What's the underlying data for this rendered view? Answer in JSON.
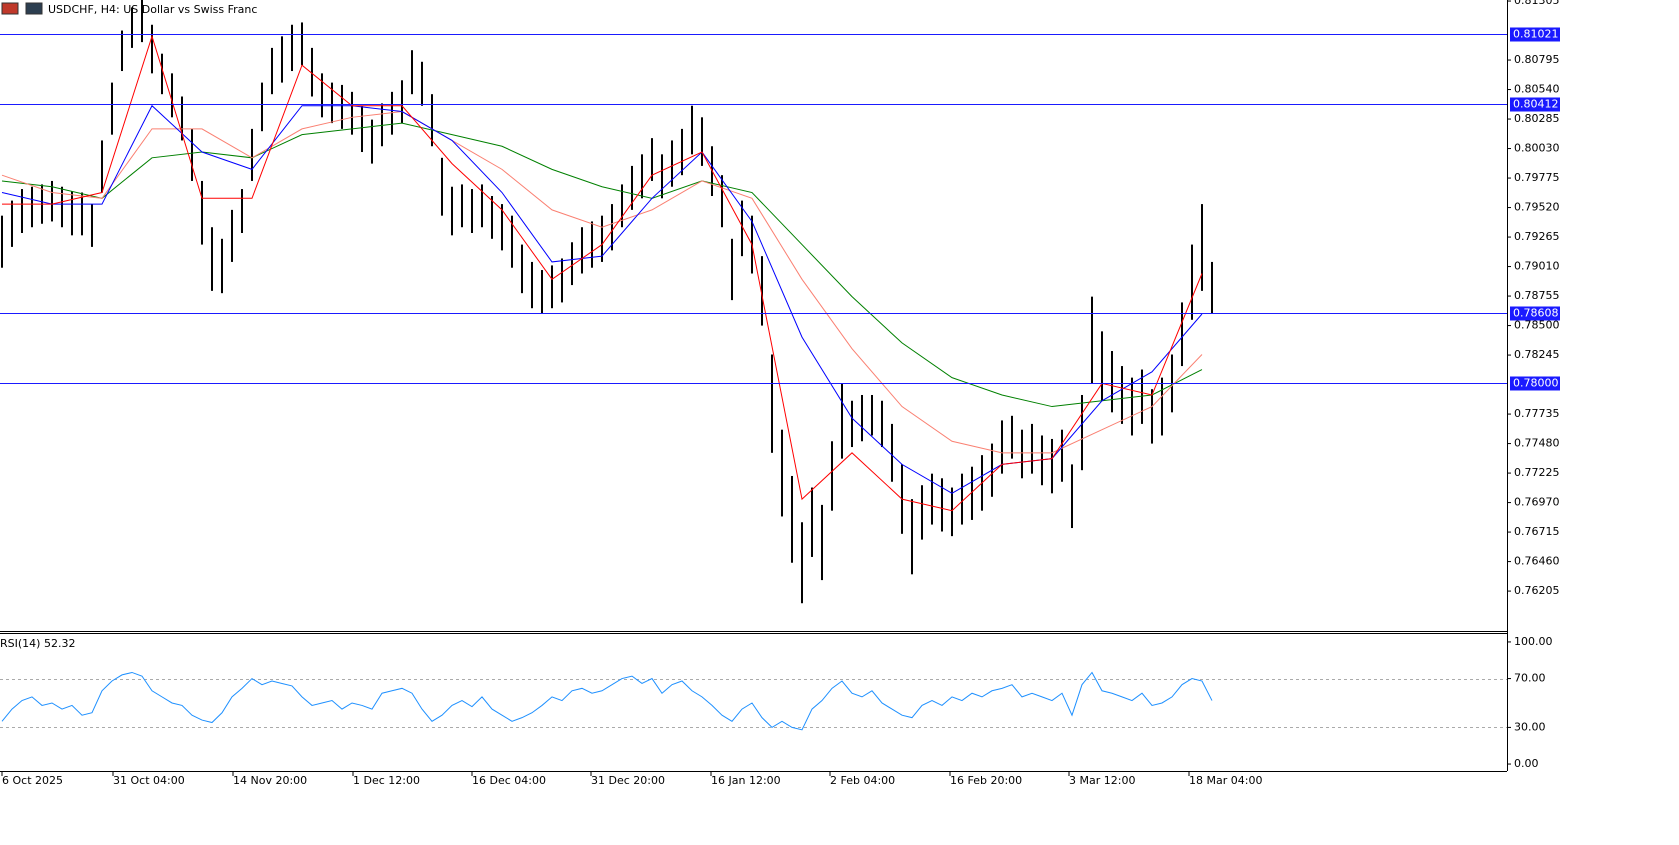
{
  "header": {
    "title": "USDCHF, H4:  US Dollar vs Swiss Franc"
  },
  "chart_data": {
    "type": "range",
    "bar_color": "#000000",
    "high": [
      0.7945,
      0.7958,
      0.7968,
      0.797,
      0.7972,
      0.7975,
      0.797,
      0.7966,
      0.7965,
      0.7955,
      0.801,
      0.806,
      0.8105,
      0.8125,
      0.8135,
      0.811,
      0.8085,
      0.8068,
      0.8048,
      0.802,
      0.7975,
      0.7935,
      0.7925,
      0.795,
      0.7968,
      0.802,
      0.806,
      0.809,
      0.81,
      0.811,
      0.8112,
      0.809,
      0.8068,
      0.806,
      0.8058,
      0.8052,
      0.804,
      0.8028,
      0.8042,
      0.8052,
      0.8062,
      0.8088,
      0.8078,
      0.805,
      0.7995,
      0.797,
      0.7972,
      0.7968,
      0.7972,
      0.7962,
      0.7955,
      0.7945,
      0.792,
      0.7905,
      0.7898,
      0.7902,
      0.7908,
      0.7922,
      0.7935,
      0.794,
      0.7945,
      0.7955,
      0.7972,
      0.7988,
      0.7998,
      0.8012,
      0.7998,
      0.801,
      0.802,
      0.804,
      0.803,
      0.8005,
      0.798,
      0.7925,
      0.7958,
      0.7945,
      0.791,
      0.7825,
      0.776,
      0.772,
      0.768,
      0.771,
      0.7695,
      0.775,
      0.78,
      0.7785,
      0.779,
      0.779,
      0.7785,
      0.7765,
      0.773,
      0.77,
      0.7712,
      0.7722,
      0.7718,
      0.771,
      0.7722,
      0.7728,
      0.7738,
      0.7748,
      0.7768,
      0.7772,
      0.776,
      0.7765,
      0.7755,
      0.7752,
      0.776,
      0.773,
      0.779,
      0.7875,
      0.7845,
      0.7828,
      0.7815,
      0.7805,
      0.7812,
      0.7795,
      0.7805,
      0.7825,
      0.787,
      0.792,
      0.7955,
      0.7905
    ],
    "low": [
      0.79,
      0.7918,
      0.793,
      0.7935,
      0.7938,
      0.794,
      0.7935,
      0.7928,
      0.7928,
      0.7918,
      0.7965,
      0.8015,
      0.807,
      0.809,
      0.8095,
      0.8068,
      0.805,
      0.803,
      0.801,
      0.7975,
      0.792,
      0.788,
      0.7878,
      0.7905,
      0.793,
      0.7975,
      0.8018,
      0.805,
      0.806,
      0.807,
      0.8075,
      0.8048,
      0.803,
      0.8025,
      0.802,
      0.8015,
      0.8,
      0.799,
      0.8005,
      0.8015,
      0.8025,
      0.805,
      0.804,
      0.8005,
      0.7945,
      0.7928,
      0.7935,
      0.793,
      0.7935,
      0.7925,
      0.7915,
      0.79,
      0.7878,
      0.7865,
      0.786,
      0.7865,
      0.787,
      0.7885,
      0.7895,
      0.79,
      0.7905,
      0.7915,
      0.7935,
      0.795,
      0.796,
      0.7975,
      0.796,
      0.797,
      0.798,
      0.7998,
      0.7988,
      0.7962,
      0.7935,
      0.7872,
      0.791,
      0.7895,
      0.785,
      0.774,
      0.7685,
      0.7645,
      0.761,
      0.765,
      0.763,
      0.769,
      0.7735,
      0.7745,
      0.775,
      0.7755,
      0.7745,
      0.7715,
      0.767,
      0.7635,
      0.7665,
      0.7678,
      0.7672,
      0.7668,
      0.7678,
      0.7682,
      0.769,
      0.7702,
      0.7722,
      0.7735,
      0.7718,
      0.7722,
      0.7712,
      0.7705,
      0.7715,
      0.7675,
      0.7725,
      0.78,
      0.7785,
      0.7775,
      0.7765,
      0.7755,
      0.7765,
      0.7748,
      0.7755,
      0.7775,
      0.7815,
      0.7855,
      0.788,
      0.786
    ],
    "ylim": [
      0.7586,
      0.81314
    ],
    "yticks": [
      {
        "value": 0.81305,
        "label": "0.81305"
      },
      {
        "value": 0.80795,
        "label": "0.80795"
      },
      {
        "value": 0.8054,
        "label": "0.80540"
      },
      {
        "value": 0.80285,
        "label": "0.80285"
      },
      {
        "value": 0.8003,
        "label": "0.80030"
      },
      {
        "value": 0.79775,
        "label": "0.79775"
      },
      {
        "value": 0.7952,
        "label": "0.79520"
      },
      {
        "value": 0.79265,
        "label": "0.79265"
      },
      {
        "value": 0.7901,
        "label": "0.79010"
      },
      {
        "value": 0.78755,
        "label": "0.78755"
      },
      {
        "value": 0.785,
        "label": "0.78500"
      },
      {
        "value": 0.78245,
        "label": "0.78245"
      },
      {
        "value": 0.77735,
        "label": "0.77735"
      },
      {
        "value": 0.7748,
        "label": "0.77480"
      },
      {
        "value": 0.77225,
        "label": "0.77225"
      },
      {
        "value": 0.7697,
        "label": "0.76970"
      },
      {
        "value": 0.76715,
        "label": "0.76715"
      },
      {
        "value": 0.7646,
        "label": "0.76460"
      },
      {
        "value": 0.76205,
        "label": "0.76205"
      }
    ],
    "levels": [
      0.81021,
      0.80412,
      0.78608,
      {
        "value": 0.78,
        "label": "0.78000"
      }
    ],
    "level_color": "#1a1aff",
    "xticks": [
      {
        "value": 0,
        "label": "6 Oct 2025"
      },
      {
        "value": 11.1,
        "label": "31 Oct 04:00"
      },
      {
        "value": 23.1,
        "label": "14 Nov 20:00"
      },
      {
        "value": 35.1,
        "label": "1 Dec 12:00"
      },
      {
        "value": 47,
        "label": "16 Dec 04:00"
      },
      {
        "value": 58.9,
        "label": "31 Dec 20:00"
      },
      {
        "value": 70.9,
        "label": "16 Jan 12:00"
      },
      {
        "value": 82.8,
        "label": "2 Feb 04:00"
      },
      {
        "value": 94.8,
        "label": "16 Feb 20:00"
      },
      {
        "value": 106.7,
        "label": "3 Mar 12:00"
      },
      {
        "value": 118.7,
        "label": "18 Mar 04:00"
      }
    ],
    "moving_averages": {
      "x": [
        0,
        5,
        10,
        15,
        20,
        25,
        30,
        35,
        40,
        45,
        50,
        55,
        60,
        65,
        70,
        75,
        80,
        85,
        90,
        95,
        100,
        105,
        110,
        115,
        120
      ],
      "lines": [
        {
          "color": "#008000",
          "values": [
            0.7975,
            0.797,
            0.796,
            0.7995,
            0.8,
            0.7995,
            0.8015,
            0.802,
            0.8025,
            0.8015,
            0.8005,
            0.7985,
            0.797,
            0.796,
            0.7975,
            0.7965,
            0.792,
            0.7875,
            0.7835,
            0.7805,
            0.779,
            0.778,
            0.7785,
            0.779,
            0.7812
          ]
        },
        {
          "color": "#fa8072",
          "values": [
            0.798,
            0.7965,
            0.796,
            0.802,
            0.802,
            0.7995,
            0.802,
            0.803,
            0.8035,
            0.801,
            0.7985,
            0.795,
            0.7935,
            0.795,
            0.7975,
            0.796,
            0.789,
            0.783,
            0.778,
            0.775,
            0.774,
            0.774,
            0.776,
            0.778,
            0.7825
          ]
        },
        {
          "color": "#0000ff",
          "values": [
            0.7965,
            0.7955,
            0.7955,
            0.804,
            0.8,
            0.7985,
            0.804,
            0.804,
            0.8035,
            0.801,
            0.7965,
            0.7905,
            0.791,
            0.796,
            0.8,
            0.794,
            0.784,
            0.777,
            0.773,
            0.7705,
            0.773,
            0.7735,
            0.7785,
            0.781,
            0.786
          ]
        },
        {
          "color": "#ff0000",
          "values": [
            0.7955,
            0.7955,
            0.7965,
            0.81,
            0.796,
            0.796,
            0.8075,
            0.804,
            0.804,
            0.799,
            0.795,
            0.789,
            0.792,
            0.798,
            0.8,
            0.792,
            0.77,
            0.774,
            0.77,
            0.769,
            0.773,
            0.7735,
            0.78,
            0.779,
            0.7895
          ]
        }
      ]
    },
    "rsi": {
      "type": "line",
      "label": "RSI(14) 52.32",
      "color": "#1e90ff",
      "values": [
        35,
        45,
        52,
        55,
        48,
        50,
        45,
        48,
        40,
        42,
        60,
        68,
        73,
        75,
        72,
        60,
        55,
        50,
        48,
        40,
        36,
        34,
        42,
        55,
        62,
        70,
        65,
        68,
        66,
        64,
        55,
        48,
        50,
        52,
        45,
        50,
        48,
        45,
        58,
        60,
        62,
        58,
        45,
        35,
        40,
        48,
        52,
        47,
        55,
        45,
        40,
        35,
        38,
        42,
        48,
        55,
        52,
        60,
        62,
        58,
        60,
        65,
        70,
        72,
        66,
        70,
        58,
        65,
        68,
        60,
        55,
        48,
        40,
        35,
        45,
        50,
        38,
        30,
        35,
        30,
        28,
        45,
        52,
        62,
        68,
        58,
        55,
        60,
        50,
        45,
        40,
        38,
        48,
        52,
        48,
        55,
        52,
        58,
        55,
        60,
        62,
        65,
        55,
        58,
        55,
        52,
        58,
        40,
        65,
        75,
        60,
        58,
        55,
        52,
        58,
        48,
        50,
        55,
        65,
        70,
        68,
        52
      ],
      "ylim": [
        -5.7,
        106.5
      ],
      "yticks": [
        {
          "value": 100,
          "label": "100.00"
        },
        {
          "value": 70,
          "label": "70.00"
        },
        {
          "value": 30,
          "label": "30.00"
        },
        {
          "value": 0,
          "label": "0.00"
        }
      ],
      "levels": [
        70,
        30
      ]
    }
  }
}
